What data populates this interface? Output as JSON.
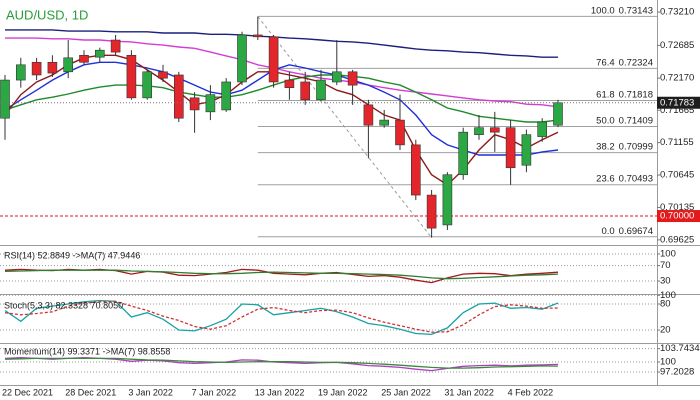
{
  "chart_data": [
    {
      "type": "candlestick",
      "title": "AUD/USD, 1D",
      "categories": [
        "22 Dec 2021",
        null,
        null,
        null,
        "28 Dec 2021",
        null,
        null,
        null,
        "3 Jan 2022",
        null,
        null,
        null,
        "7 Jan 2022",
        null,
        null,
        null,
        "13 Jan 2022",
        null,
        null,
        null,
        "19 Jan 2022",
        null,
        null,
        null,
        "25 Jan 2022",
        null,
        null,
        null,
        "31 Jan 2022",
        null,
        null,
        null,
        "4 Feb 2022",
        null,
        null,
        null
      ],
      "open": [
        0.7154,
        0.7214,
        0.7242,
        0.7242,
        0.7227,
        0.7253,
        0.725,
        0.7277,
        0.7253,
        0.7186,
        0.7227,
        0.7222,
        0.7186,
        0.7164,
        0.7167,
        0.7211,
        0.7285,
        0.7282,
        0.7214,
        0.7211,
        0.7183,
        0.7211,
        0.7227,
        0.7175,
        0.7143,
        0.7151,
        0.7112,
        0.7033,
        0.6986,
        0.7065,
        0.7128,
        0.7139,
        0.7139,
        0.708,
        0.7125,
        0.7143
      ],
      "high": [
        0.7222,
        0.7249,
        0.7249,
        0.7253,
        0.7277,
        0.7261,
        0.7265,
        0.7285,
        0.7261,
        0.723,
        0.7238,
        0.7227,
        0.7195,
        0.7206,
        0.7217,
        0.729,
        0.7314,
        0.7285,
        0.7227,
        0.7227,
        0.723,
        0.7277,
        0.723,
        0.7183,
        0.7167,
        0.7191,
        0.712,
        0.7041,
        0.7069,
        0.7139,
        0.7159,
        0.7164,
        0.7151,
        0.7136,
        0.7154,
        0.7183
      ],
      "low": [
        0.712,
        0.7202,
        0.7214,
        0.7219,
        0.7217,
        0.7238,
        0.7242,
        0.7253,
        0.7183,
        0.7183,
        0.7211,
        0.7148,
        0.7131,
        0.7151,
        0.7164,
        0.7206,
        0.7277,
        0.7202,
        0.7183,
        0.7175,
        0.718,
        0.7206,
        0.7175,
        0.7091,
        0.7139,
        0.7104,
        0.7025,
        0.6966,
        0.6978,
        0.7057,
        0.712,
        0.7101,
        0.7049,
        0.7069,
        0.7117,
        0.714
      ],
      "close": [
        0.7214,
        0.7238,
        0.7222,
        0.7225,
        0.7249,
        0.7242,
        0.7261,
        0.7258,
        0.7186,
        0.7227,
        0.7217,
        0.7154,
        0.7167,
        0.7191,
        0.7211,
        0.7285,
        0.7282,
        0.7211,
        0.7202,
        0.7183,
        0.7214,
        0.7227,
        0.7206,
        0.7143,
        0.7151,
        0.7112,
        0.7033,
        0.6981,
        0.7065,
        0.7132,
        0.7139,
        0.7132,
        0.7076,
        0.7128,
        0.7148,
        0.71783
      ],
      "up_color": "#2ba843",
      "down_color": "#e2262b",
      "lines": [
        {
          "color": "#1c1f7c",
          "values": [
            0.7293,
            0.7293,
            0.7293,
            0.7293,
            0.7291,
            0.7291,
            0.7291,
            0.729,
            0.729,
            0.729,
            0.7288,
            0.7288,
            0.7288,
            0.7286,
            0.7286,
            0.7285,
            0.7283,
            0.7282,
            0.728,
            0.7279,
            0.7277,
            0.7275,
            0.7274,
            0.7272,
            0.7269,
            0.7266,
            0.7263,
            0.7261,
            0.726,
            0.7258,
            0.7257,
            0.7255,
            0.7253,
            0.7252,
            0.725,
            0.725
          ]
        },
        {
          "color": "#d43dd4",
          "values": [
            0.728,
            0.728,
            0.728,
            0.7279,
            0.7279,
            0.7277,
            0.7277,
            0.7275,
            0.7274,
            0.7271,
            0.7269,
            0.7266,
            0.7264,
            0.7258,
            0.7252,
            0.7246,
            0.7238,
            0.7233,
            0.7227,
            0.7222,
            0.7217,
            0.7214,
            0.7211,
            0.7206,
            0.7202,
            0.7198,
            0.7195,
            0.7192,
            0.7189,
            0.7186,
            0.7183,
            0.7181,
            0.718,
            0.7176,
            0.7175,
            0.7172
          ]
        },
        {
          "color": "#1f8a2a",
          "values": [
            0.7167,
            0.7175,
            0.7183,
            0.7187,
            0.7192,
            0.7198,
            0.7203,
            0.7206,
            0.7206,
            0.7205,
            0.7202,
            0.7195,
            0.7191,
            0.7187,
            0.7187,
            0.7191,
            0.7198,
            0.7206,
            0.7214,
            0.7219,
            0.7222,
            0.7222,
            0.722,
            0.7217,
            0.7211,
            0.7206,
            0.7195,
            0.7183,
            0.717,
            0.7164,
            0.7157,
            0.7154,
            0.7151,
            0.7148,
            0.7148,
            0.7151
          ]
        },
        {
          "color": "#1e30d8",
          "values": [
            0.7167,
            0.7183,
            0.7198,
            0.7214,
            0.7227,
            0.7238,
            0.7242,
            0.7242,
            0.7238,
            0.7233,
            0.7227,
            0.7217,
            0.7206,
            0.7195,
            0.7191,
            0.7198,
            0.7214,
            0.723,
            0.7238,
            0.7233,
            0.7227,
            0.7222,
            0.7214,
            0.7206,
            0.7195,
            0.7183,
            0.7159,
            0.7128,
            0.7112,
            0.7104,
            0.7096,
            0.7096,
            0.7096,
            0.7096,
            0.7101,
            0.7104
          ]
        },
        {
          "color": "#8e1a1a",
          "values": [
            0.7159,
            0.7191,
            0.7211,
            0.7222,
            0.7238,
            0.7249,
            0.7253,
            0.7253,
            0.7246,
            0.723,
            0.7214,
            0.7195,
            0.7175,
            0.718,
            0.7191,
            0.7211,
            0.7227,
            0.7227,
            0.7222,
            0.7217,
            0.7211,
            0.7198,
            0.7191,
            0.7175,
            0.7159,
            0.7151,
            0.7104,
            0.7065,
            0.7049,
            0.7073,
            0.7104,
            0.7128,
            0.712,
            0.7107,
            0.712,
            0.7132
          ]
        }
      ],
      "fib_levels": [
        {
          "ratio": "100.0",
          "price": 0.73143
        },
        {
          "ratio": "76.4",
          "price": 0.72324
        },
        {
          "ratio": "61.8",
          "price": 0.71818
        },
        {
          "ratio": "50.0",
          "price": 0.71409
        },
        {
          "ratio": "38.2",
          "price": 0.70999
        },
        {
          "ratio": "23.6",
          "price": 0.70493
        },
        {
          "ratio": "0.0",
          "price": 0.69674
        }
      ],
      "last_price": 0.71783,
      "reference_level": {
        "value": 0.7,
        "label": "0.70000"
      },
      "ylim": [
        0.6956,
        0.734
      ],
      "yticks": [
        {
          "value": 0.7321,
          "label": "0.73210"
        },
        0.72685,
        {
          "value": 0.7217,
          "label": "0.72170"
        },
        0.71665,
        0.71155,
        0.70645,
        0.70135,
        0.69625
      ]
    },
    {
      "type": "line",
      "title": "RSI(14) 52.8849 ->MA(7) 47.9446",
      "series": [
        {
          "color": "#a3191b",
          "values": [
            58,
            60,
            58,
            57,
            60,
            58,
            60,
            57,
            48,
            55,
            53,
            45,
            44,
            48,
            52,
            60,
            58,
            50,
            48,
            46,
            50,
            52,
            47,
            42,
            44,
            40,
            32,
            26,
            38,
            48,
            50,
            49,
            44,
            48,
            50,
            52.8849
          ]
        },
        {
          "color": "#2e7d32",
          "values": [
            55,
            56,
            57,
            58,
            58,
            58,
            58,
            58,
            56,
            55,
            54,
            52,
            50,
            49,
            49,
            50,
            52,
            53,
            52,
            51,
            50,
            50,
            49,
            48,
            47,
            45,
            42,
            38,
            36,
            37,
            39,
            41,
            43,
            45,
            46,
            47.9446
          ]
        }
      ],
      "ylim": [
        0,
        100
      ],
      "yticks": [
        100,
        70,
        30
      ],
      "grid": true
    },
    {
      "type": "line",
      "title": "Stoch(5,3,3) 82.3328 70.8050",
      "series": [
        {
          "color": "#17a2a4",
          "values": [
            65,
            40,
            70,
            75,
            80,
            85,
            88,
            86,
            50,
            60,
            45,
            20,
            18,
            30,
            45,
            80,
            78,
            55,
            60,
            65,
            70,
            62,
            50,
            35,
            30,
            22,
            12,
            10,
            25,
            60,
            80,
            82,
            70,
            72,
            68,
            82.3328
          ]
        },
        {
          "color": "#d23232",
          "line_style": "dashed",
          "values": [
            60,
            55,
            58,
            62,
            75,
            82,
            85,
            86,
            75,
            65,
            52,
            42,
            28,
            22,
            30,
            50,
            68,
            72,
            65,
            60,
            65,
            66,
            60,
            48,
            38,
            30,
            22,
            15,
            16,
            32,
            55,
            74,
            78,
            75,
            70,
            70.805
          ]
        }
      ],
      "ylim": [
        0,
        100
      ],
      "yticks": [
        100,
        80,
        20
      ],
      "grid": true
    },
    {
      "type": "line",
      "title": "Momentum(14) 99.3371 ->MA(7) 98.8558",
      "series": [
        {
          "color": "#b03ec2",
          "values": [
            101,
            101.2,
            101,
            100.8,
            101,
            101.2,
            101,
            100.8,
            100.2,
            100.5,
            100.3,
            99.8,
            99.6,
            99.8,
            100,
            100.6,
            100.5,
            100,
            99.8,
            99.6,
            99.8,
            99.9,
            99.5,
            99,
            98.8,
            98.5,
            98,
            97.6,
            98.2,
            98.8,
            99,
            99.1,
            98.9,
            99.1,
            99.2,
            99.3371
          ]
        },
        {
          "color": "#3a8a3a",
          "values": [
            100.8,
            100.9,
            101,
            101,
            101,
            101,
            101,
            101,
            100.8,
            100.6,
            100.5,
            100.3,
            100.1,
            100,
            99.9,
            100,
            100.1,
            100.1,
            100.1,
            100,
            99.9,
            99.9,
            99.8,
            99.6,
            99.4,
            99.1,
            98.8,
            98.5,
            98.3,
            98.3,
            98.4,
            98.6,
            98.7,
            98.8,
            98.9,
            98.8558
          ]
        }
      ],
      "ylim": [
        93.57,
        104.76
      ],
      "yticks": [
        103.7434,
        100,
        97.2028
      ],
      "grid": true
    }
  ]
}
